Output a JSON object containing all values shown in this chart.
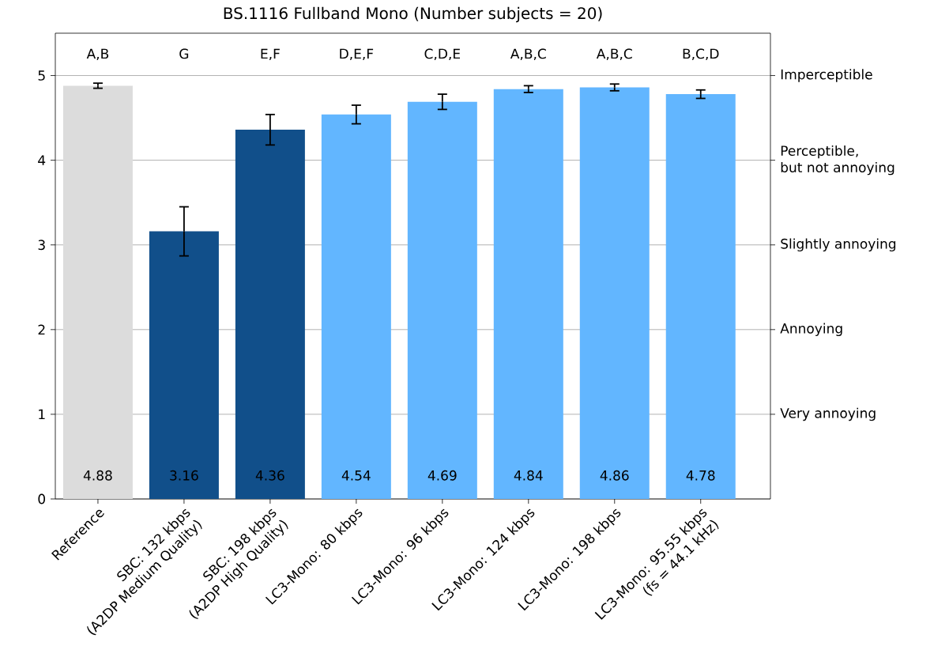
{
  "chart_data": {
    "type": "bar",
    "title": "BS.1116 Fullband Mono (Number subjects = 20)",
    "categories": [
      "Reference",
      "SBC: 132 kbps\n(A2DP Medium Quality)",
      "SBC: 198 kbps\n(A2DP High Quality)",
      "LC3-Mono: 80 kbps",
      "LC3-Mono: 96 kbps",
      "LC3-Mono: 124 kbps",
      "LC3-Mono: 198 kbps",
      "LC3-Mono: 95.55 kbps\n(fs = 44.1 kHz)"
    ],
    "values": [
      4.88,
      3.16,
      4.36,
      4.54,
      4.69,
      4.84,
      4.86,
      4.78
    ],
    "errors": [
      0.03,
      0.29,
      0.18,
      0.11,
      0.09,
      0.04,
      0.04,
      0.05
    ],
    "colors": [
      "#dcdcdc",
      "#114f8a",
      "#114f8a",
      "#62b6ff",
      "#62b6ff",
      "#62b6ff",
      "#62b6ff",
      "#62b6ff"
    ],
    "value_labels": [
      "4.88",
      "3.16",
      "4.36",
      "4.54",
      "4.69",
      "4.84",
      "4.86",
      "4.78"
    ],
    "ylim": [
      0,
      5.5
    ],
    "yticks": [
      0,
      1,
      2,
      3,
      4,
      5
    ],
    "grid": "y",
    "annotations": [
      "A,B",
      "G",
      "E,F",
      "D,E,F",
      "C,D,E",
      "A,B,C",
      "A,B,C",
      "B,C,D",
      "Very annoying",
      "Annoying",
      "Slightly annoying",
      "Perceptible,\nbut not annoying",
      "Imperceptible"
    ]
  }
}
